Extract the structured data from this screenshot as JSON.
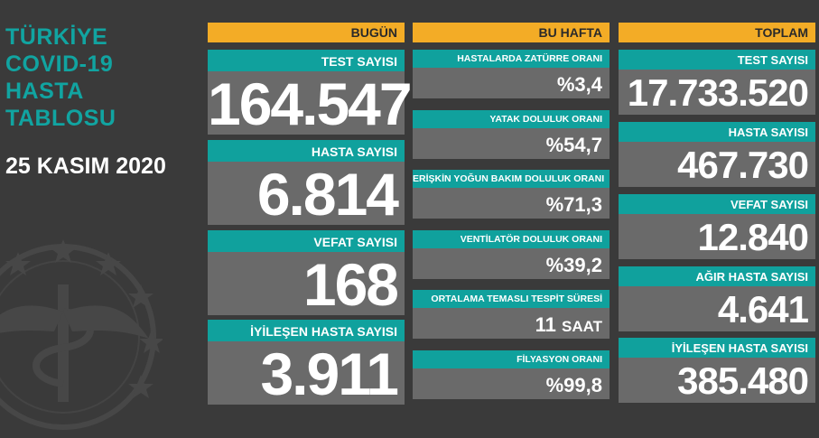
{
  "header": {
    "title_lines": [
      "TÜRKİYE",
      "COVID-19",
      "HASTA",
      "TABLOSU"
    ],
    "date": "25 KASIM 2020"
  },
  "columns": {
    "today": {
      "heading": "BUGÜN",
      "cards": [
        {
          "label": "TEST SAYISI",
          "value": "164.547"
        },
        {
          "label": "HASTA SAYISI",
          "value": "6.814"
        },
        {
          "label": "VEFAT SAYISI",
          "value": "168"
        },
        {
          "label": "İYİLEŞEN HASTA SAYISI",
          "value": "3.911"
        }
      ]
    },
    "week": {
      "heading": "BU HAFTA",
      "cards": [
        {
          "label": "HASTALARDA ZATÜRRE ORANI",
          "value": "%3,4"
        },
        {
          "label": "YATAK DOLULUK ORANI",
          "value": "%54,7"
        },
        {
          "label": "ERİŞKİN YOĞUN BAKIM DOLULUK ORANI",
          "value": "%71,3"
        },
        {
          "label": "VENTİLATÖR DOLULUK ORANI",
          "value": "%39,2"
        },
        {
          "label": "ORTALAMA TEMASLI TESPİT SÜRESİ",
          "value": "11",
          "unit": "SAAT"
        },
        {
          "label": "FİLYASYON ORANI",
          "value": "%99,8"
        }
      ]
    },
    "total": {
      "heading": "TOPLAM",
      "cards": [
        {
          "label": "TEST SAYISI",
          "value": "17.733.520"
        },
        {
          "label": "HASTA SAYISI",
          "value": "467.730"
        },
        {
          "label": "VEFAT SAYISI",
          "value": "12.840"
        },
        {
          "label": "AĞIR HASTA SAYISI",
          "value": "4.641"
        },
        {
          "label": "İYİLEŞEN HASTA SAYISI",
          "value": "385.480"
        }
      ]
    }
  },
  "colors": {
    "background": "#3a3a3a",
    "accent_teal": "#10a19d",
    "header_orange": "#f3ac26",
    "value_gray": "#6a6a6a"
  },
  "icons": {
    "emblem": "health-ministry-emblem"
  }
}
